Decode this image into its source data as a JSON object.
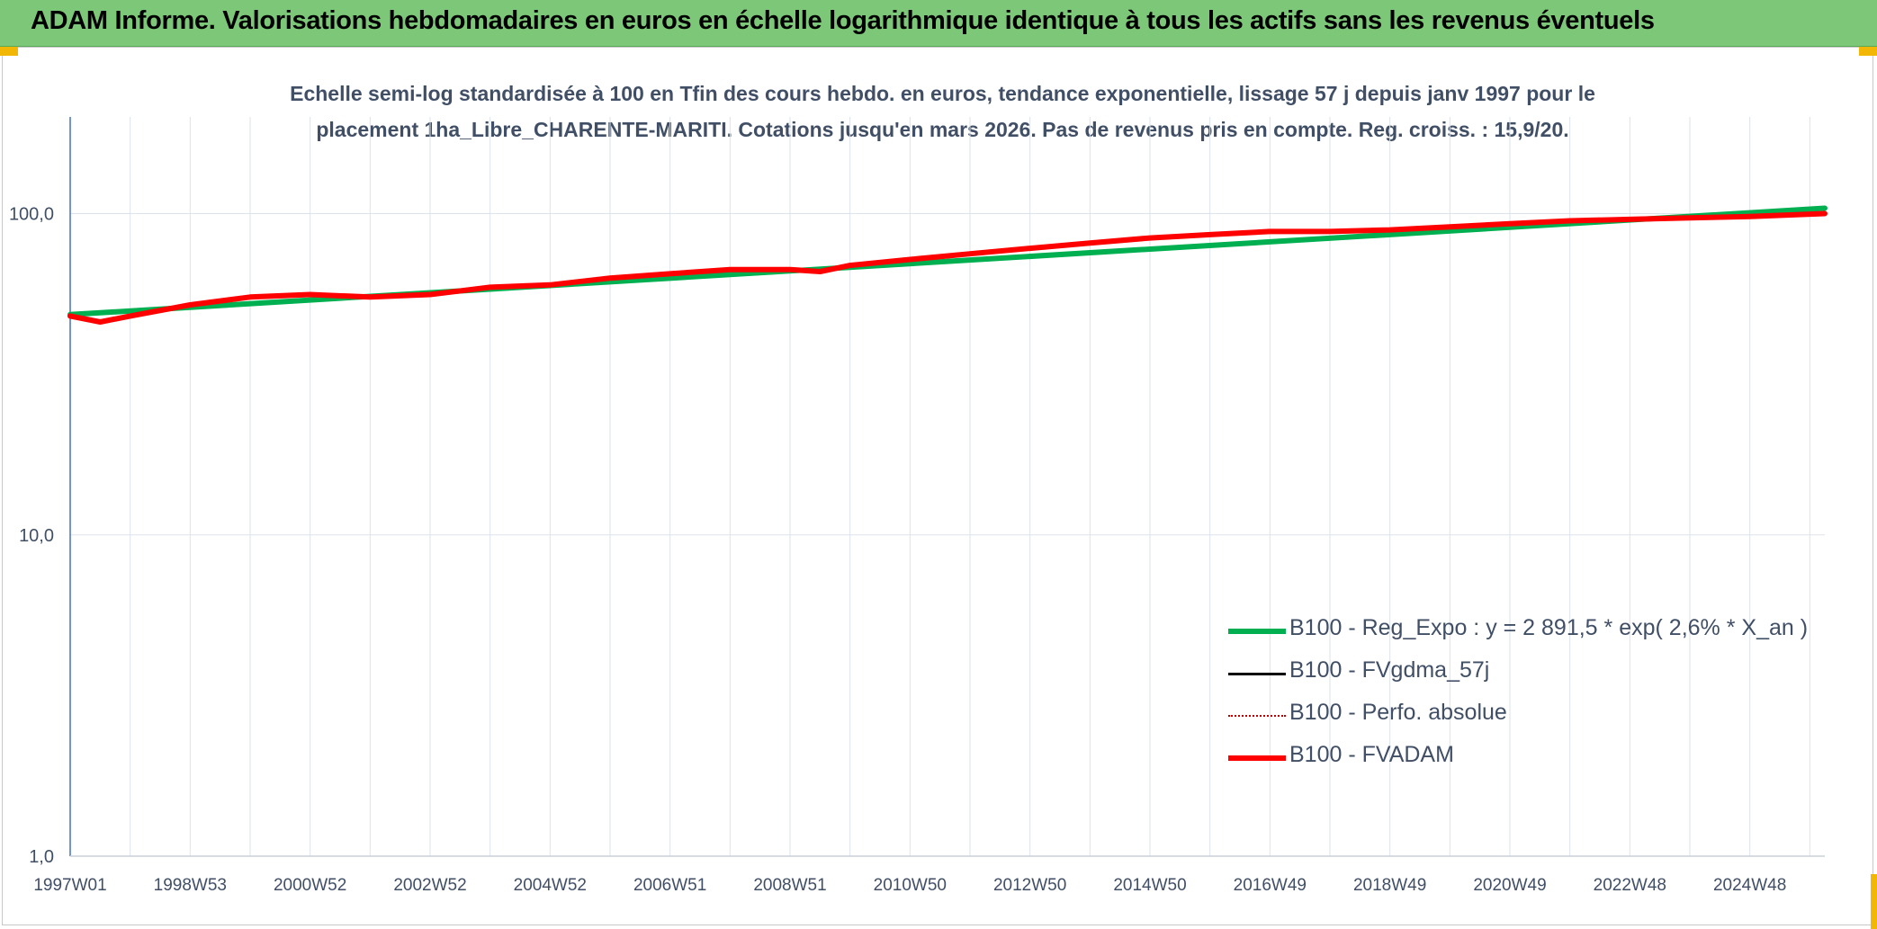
{
  "banner": {
    "title": "ADAM Informe. Valorisations hebdomadaires en euros en échelle logarithmique identique à tous les actifs sans les revenus éventuels",
    "background": "#7dc878"
  },
  "chart_data": {
    "type": "line",
    "title_line1": "Echelle semi-log standardisée à 100 en Tfin des cours hebdo. en euros, tendance exponentielle, lissage 57 j depuis janv 1997 pour le",
    "title_line2": "placement 1ha_Libre_CHARENTE-MARITI. Cotations jusqu'en mars 2026. Pas de revenus pris en compte. Reg. croiss. : 15,9/20.",
    "xlabel": "",
    "ylabel": "",
    "y_scale": "log",
    "ylim": [
      1,
      200
    ],
    "y_ticks": [
      {
        "value": 1,
        "label": "1,0"
      },
      {
        "value": 10,
        "label": "10,0"
      },
      {
        "value": 100,
        "label": "100,0"
      }
    ],
    "xlim": [
      1997.0,
      2026.25
    ],
    "x_ticks": [
      {
        "value": 1997.0,
        "label": "1997W01"
      },
      {
        "value": 1999.0,
        "label": "1998W53"
      },
      {
        "value": 2001.0,
        "label": "2000W52"
      },
      {
        "value": 2003.0,
        "label": "2002W52"
      },
      {
        "value": 2005.0,
        "label": "2004W52"
      },
      {
        "value": 2007.0,
        "label": "2006W51"
      },
      {
        "value": 2009.0,
        "label": "2008W51"
      },
      {
        "value": 2011.0,
        "label": "2010W50"
      },
      {
        "value": 2013.0,
        "label": "2012W50"
      },
      {
        "value": 2015.0,
        "label": "2014W50"
      },
      {
        "value": 2017.0,
        "label": "2016W49"
      },
      {
        "value": 2019.0,
        "label": "2018W49"
      },
      {
        "value": 2021.0,
        "label": "2020W49"
      },
      {
        "value": 2023.0,
        "label": "2022W48"
      },
      {
        "value": 2025.0,
        "label": "2024W48"
      }
    ],
    "grid": true,
    "legend_position": "bottom-right",
    "series": [
      {
        "name": "B100 - Reg_Expo : y = 2 891,5 * exp( 2,6% *  X_an )",
        "color": "#00b050",
        "style": "solid-thick",
        "x": [
          1997.0,
          2026.25
        ],
        "y": [
          48.5,
          104
        ]
      },
      {
        "name": "B100 - FVgdma_57j",
        "color": "#000000",
        "style": "solid",
        "x": [],
        "y": []
      },
      {
        "name": "B100 - Perfo. absolue",
        "color": "#c00000",
        "style": "dotted",
        "x": [],
        "y": []
      },
      {
        "name": "B100 - FVADAM",
        "color": "#ff0000",
        "style": "solid-thick",
        "x": [
          1997.0,
          1997.5,
          1998.0,
          1999.0,
          2000.0,
          2001.0,
          2002.0,
          2003.0,
          2004.0,
          2005.0,
          2006.0,
          2007.0,
          2008.0,
          2009.0,
          2009.5,
          2010.0,
          2011.0,
          2012.0,
          2013.0,
          2014.0,
          2015.0,
          2016.0,
          2017.0,
          2018.0,
          2019.0,
          2020.0,
          2021.0,
          2022.0,
          2023.0,
          2024.0,
          2025.0,
          2026.25
        ],
        "y": [
          48,
          46,
          48,
          52,
          55,
          56,
          55,
          56,
          59,
          60,
          63,
          65,
          67,
          67,
          66,
          69,
          72,
          75,
          78,
          81,
          84,
          86,
          88,
          88,
          89,
          91,
          93,
          95,
          96,
          97,
          98,
          100
        ]
      }
    ]
  }
}
